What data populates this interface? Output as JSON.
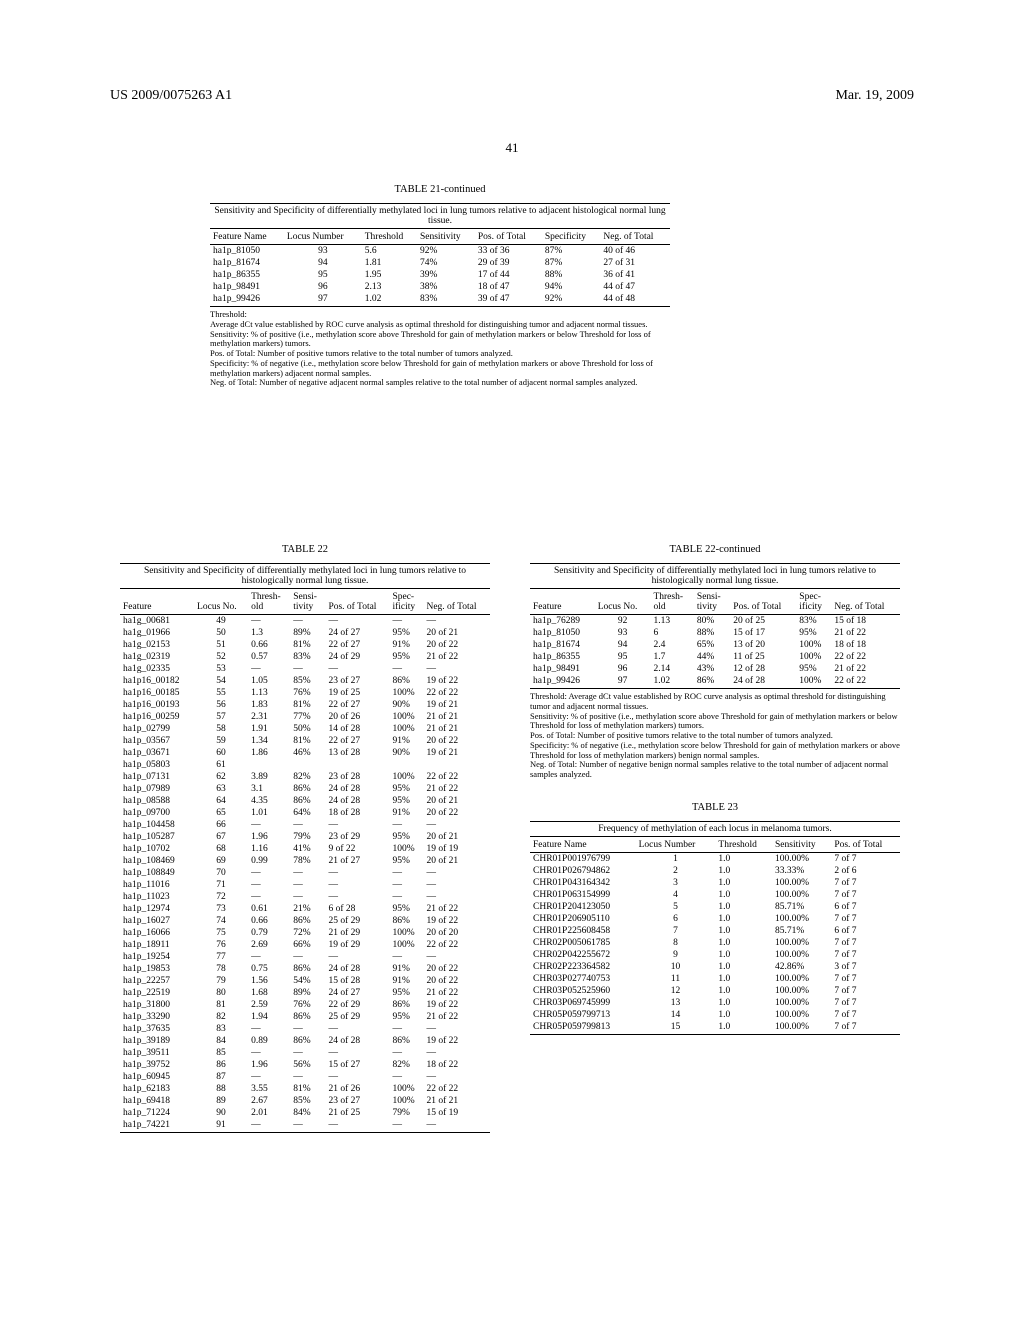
{
  "header": {
    "left": "US 2009/0075263 A1",
    "right": "Mar. 19, 2009"
  },
  "page_number_top": "41",
  "table21": {
    "caption": "TABLE 21-continued",
    "subtitle": "Sensitivity and Specificity of differentially methylated loci in lung tumors relative to adjacent histological normal lung tissue.",
    "columns": [
      "Feature Name",
      "Locus Number",
      "Threshold",
      "Sensitivity",
      "Pos. of Total",
      "Specificity",
      "Neg. of Total"
    ],
    "rows": [
      [
        "ha1p_81050",
        "93",
        "5.6",
        "92%",
        "33 of 36",
        "87%",
        "40 of 46"
      ],
      [
        "ha1p_81674",
        "94",
        "1.81",
        "74%",
        "29 of 39",
        "87%",
        "27 of 31"
      ],
      [
        "ha1p_86355",
        "95",
        "1.95",
        "39%",
        "17 of 44",
        "88%",
        "36 of 41"
      ],
      [
        "ha1p_98491",
        "96",
        "2.13",
        "38%",
        "18 of 47",
        "94%",
        "44 of 47"
      ],
      [
        "ha1p_99426",
        "97",
        "1.02",
        "83%",
        "39 of 47",
        "92%",
        "44 of 48"
      ]
    ],
    "footnote": "Threshold:\nAverage dCt value established by ROC curve analysis as optimal threshold for distinguishing tumor and adjacent normal tissues.\nSensitivity: % of positive (i.e., methylation score above Threshold for gain of methylation markers or below Threshold for loss of methylation markers) tumors.\nPos. of Total: Number of positive tumors relative to the total number of tumors analyzed.\nSpecificity: % of negative (i.e., methylation score below Threshold for gain of methylation markers or above Threshold for loss of methylation markers) adjacent normal samples.\nNeg. of Total: Number of negative adjacent normal samples relative to the total number of adjacent normal samples analyzed."
  },
  "table22": {
    "caption": "TABLE 22",
    "subtitle": "Sensitivity and Specificity of differentially methylated loci in lung tumors relative to histologically normal lung tissue.",
    "columns": [
      "Feature",
      "Locus No.",
      "Thresh-old",
      "Sensi-tivity",
      "Pos. of Total",
      "Spec-ificity",
      "Neg. of Total"
    ],
    "rows_left": [
      [
        "ha1g_00681",
        "49",
        "—",
        "—",
        "—",
        "—",
        "—"
      ],
      [
        "ha1g_01966",
        "50",
        "1.3",
        "89%",
        "24 of 27",
        "95%",
        "20 of 21"
      ],
      [
        "ha1g_02153",
        "51",
        "0.66",
        "81%",
        "22 of 27",
        "91%",
        "20 of 22"
      ],
      [
        "ha1g_02319",
        "52",
        "0.57",
        "83%",
        "24 of 29",
        "95%",
        "21 of 22"
      ],
      [
        "ha1g_02335",
        "53",
        "—",
        "—",
        "—",
        "—",
        "—"
      ],
      [
        "ha1p16_00182",
        "54",
        "1.05",
        "85%",
        "23 of 27",
        "86%",
        "19 of 22"
      ],
      [
        "ha1p16_00185",
        "55",
        "1.13",
        "76%",
        "19 of 25",
        "100%",
        "22 of 22"
      ],
      [
        "ha1p16_00193",
        "56",
        "1.83",
        "81%",
        "22 of 27",
        "90%",
        "19 of 21"
      ],
      [
        "ha1p16_00259",
        "57",
        "2.31",
        "77%",
        "20 of 26",
        "100%",
        "21 of 21"
      ],
      [
        "ha1p_02799",
        "58",
        "1.91",
        "50%",
        "14 of 28",
        "100%",
        "21 of 21"
      ],
      [
        "ha1p_03567",
        "59",
        "1.34",
        "81%",
        "22 of 27",
        "91%",
        "20 of 22"
      ],
      [
        "ha1p_03671",
        "60",
        "1.86",
        "46%",
        "13 of 28",
        "90%",
        "19 of 21"
      ],
      [
        "ha1p_05803",
        "61",
        "",
        "",
        "",
        "",
        ""
      ],
      [
        "ha1p_07131",
        "62",
        "3.89",
        "82%",
        "23 of 28",
        "100%",
        "22 of 22"
      ],
      [
        "ha1p_07989",
        "63",
        "3.1",
        "86%",
        "24 of 28",
        "95%",
        "21 of 22"
      ],
      [
        "ha1p_08588",
        "64",
        "4.35",
        "86%",
        "24 of 28",
        "95%",
        "20 of 21"
      ],
      [
        "ha1p_09700",
        "65",
        "1.01",
        "64%",
        "18 of 28",
        "91%",
        "20 of 22"
      ],
      [
        "ha1p_104458",
        "66",
        "—",
        "—",
        "—",
        "—",
        "—"
      ],
      [
        "ha1p_105287",
        "67",
        "1.96",
        "79%",
        "23 of 29",
        "95%",
        "20 of 21"
      ],
      [
        "ha1p_10702",
        "68",
        "1.16",
        "41%",
        "9 of 22",
        "100%",
        "19 of 19"
      ],
      [
        "ha1p_108469",
        "69",
        "0.99",
        "78%",
        "21 of 27",
        "95%",
        "20 of 21"
      ],
      [
        "ha1p_108849",
        "70",
        "—",
        "—",
        "—",
        "—",
        "—"
      ],
      [
        "ha1p_11016",
        "71",
        "—",
        "—",
        "—",
        "—",
        "—"
      ],
      [
        "ha1p_11023",
        "72",
        "—",
        "—",
        "—",
        "—",
        "—"
      ],
      [
        "ha1p_12974",
        "73",
        "0.61",
        "21%",
        "6 of 28",
        "95%",
        "21 of 22"
      ],
      [
        "ha1p_16027",
        "74",
        "0.66",
        "86%",
        "25 of 29",
        "86%",
        "19 of 22"
      ],
      [
        "ha1p_16066",
        "75",
        "0.79",
        "72%",
        "21 of 29",
        "100%",
        "20 of 20"
      ],
      [
        "ha1p_18911",
        "76",
        "2.69",
        "66%",
        "19 of 29",
        "100%",
        "22 of 22"
      ],
      [
        "ha1p_19254",
        "77",
        "—",
        "—",
        "—",
        "—",
        "—"
      ],
      [
        "ha1p_19853",
        "78",
        "0.75",
        "86%",
        "24 of 28",
        "91%",
        "20 of 22"
      ],
      [
        "ha1p_22257",
        "79",
        "1.56",
        "54%",
        "15 of 28",
        "91%",
        "20 of 22"
      ],
      [
        "ha1p_22519",
        "80",
        "1.68",
        "89%",
        "24 of 27",
        "95%",
        "21 of 22"
      ],
      [
        "ha1p_31800",
        "81",
        "2.59",
        "76%",
        "22 of 29",
        "86%",
        "19 of 22"
      ],
      [
        "ha1p_33290",
        "82",
        "1.94",
        "86%",
        "25 of 29",
        "95%",
        "21 of 22"
      ],
      [
        "ha1p_37635",
        "83",
        "—",
        "—",
        "—",
        "—",
        "—"
      ],
      [
        "ha1p_39189",
        "84",
        "0.89",
        "86%",
        "24 of 28",
        "86%",
        "19 of 22"
      ],
      [
        "ha1p_39511",
        "85",
        "—",
        "—",
        "—",
        "—",
        "—"
      ],
      [
        "ha1p_39752",
        "86",
        "1.96",
        "56%",
        "15 of 27",
        "82%",
        "18 of 22"
      ],
      [
        "ha1p_60945",
        "87",
        "—",
        "—",
        "—",
        "—",
        "—"
      ],
      [
        "ha1p_62183",
        "88",
        "3.55",
        "81%",
        "21 of 26",
        "100%",
        "22 of 22"
      ],
      [
        "ha1p_69418",
        "89",
        "2.67",
        "85%",
        "23 of 27",
        "100%",
        "21 of 21"
      ],
      [
        "ha1p_71224",
        "90",
        "2.01",
        "84%",
        "21 of 25",
        "79%",
        "15 of 19"
      ],
      [
        "ha1p_74221",
        "91",
        "—",
        "—",
        "—",
        "—",
        "—"
      ]
    ],
    "caption_cont": "TABLE 22-continued",
    "rows_right": [
      [
        "ha1p_76289",
        "92",
        "1.13",
        "80%",
        "20 of 25",
        "83%",
        "15 of 18"
      ],
      [
        "ha1p_81050",
        "93",
        "6",
        "88%",
        "15 of 17",
        "95%",
        "21 of 22"
      ],
      [
        "ha1p_81674",
        "94",
        "2.4",
        "65%",
        "13 of 20",
        "100%",
        "18 of 18"
      ],
      [
        "ha1p_86355",
        "95",
        "1.7",
        "44%",
        "11 of 25",
        "100%",
        "22 of 22"
      ],
      [
        "ha1p_98491",
        "96",
        "2.14",
        "43%",
        "12 of 28",
        "95%",
        "21 of 22"
      ],
      [
        "ha1p_99426",
        "97",
        "1.02",
        "86%",
        "24 of 28",
        "100%",
        "22 of 22"
      ]
    ],
    "footnote": "Threshold: Average dCt value established by ROC curve analysis as optimal threshold for distinguishing tumor and adjacent normal tissues.\nSensitivity: % of positive (i.e., methylation score above Threshold for gain of methylation markers or below Threshold for loss of methylation markers) tumors.\nPos. of Total: Number of positive tumors relative to the total number of tumors analyzed.\nSpecificity: % of negative (i.e., methylation score below Threshold for gain of methylation markers or above Threshold for loss of methylation markers) benign normal samples.\nNeg. of Total: Number of negative benign normal samples relative to the total number of adjacent normal samples analyzed."
  },
  "table23": {
    "caption": "TABLE 23",
    "subtitle": "Frequency of methylation of each locus in melanoma tumors.",
    "columns": [
      "Feature Name",
      "Locus Number",
      "Threshold",
      "Sensitivity",
      "Pos. of Total"
    ],
    "rows": [
      [
        "CHR01P001976799",
        "1",
        "1.0",
        "100.00%",
        "7 of 7"
      ],
      [
        "CHR01P026794862",
        "2",
        "1.0",
        "33.33%",
        "2 of 6"
      ],
      [
        "CHR01P043164342",
        "3",
        "1.0",
        "100.00%",
        "7 of 7"
      ],
      [
        "CHR01P063154999",
        "4",
        "1.0",
        "100.00%",
        "7 of 7"
      ],
      [
        "CHR01P204123050",
        "5",
        "1.0",
        "85.71%",
        "6 of 7"
      ],
      [
        "CHR01P206905110",
        "6",
        "1.0",
        "100.00%",
        "7 of 7"
      ],
      [
        "CHR01P225608458",
        "7",
        "1.0",
        "85.71%",
        "6 of 7"
      ],
      [
        "CHR02P005061785",
        "8",
        "1.0",
        "100.00%",
        "7 of 7"
      ],
      [
        "CHR02P042255672",
        "9",
        "1.0",
        "100.00%",
        "7 of 7"
      ],
      [
        "CHR02P223364582",
        "10",
        "1.0",
        "42.86%",
        "3 of 7"
      ],
      [
        "CHR03P027740753",
        "11",
        "1.0",
        "100.00%",
        "7 of 7"
      ],
      [
        "CHR03P052525960",
        "12",
        "1.0",
        "100.00%",
        "7 of 7"
      ],
      [
        "CHR03P069745999",
        "13",
        "1.0",
        "100.00%",
        "7 of 7"
      ],
      [
        "CHR05P059799713",
        "14",
        "1.0",
        "100.00%",
        "7 of 7"
      ],
      [
        "CHR05P059799813",
        "15",
        "1.0",
        "100.00%",
        "7 of 7"
      ]
    ]
  }
}
